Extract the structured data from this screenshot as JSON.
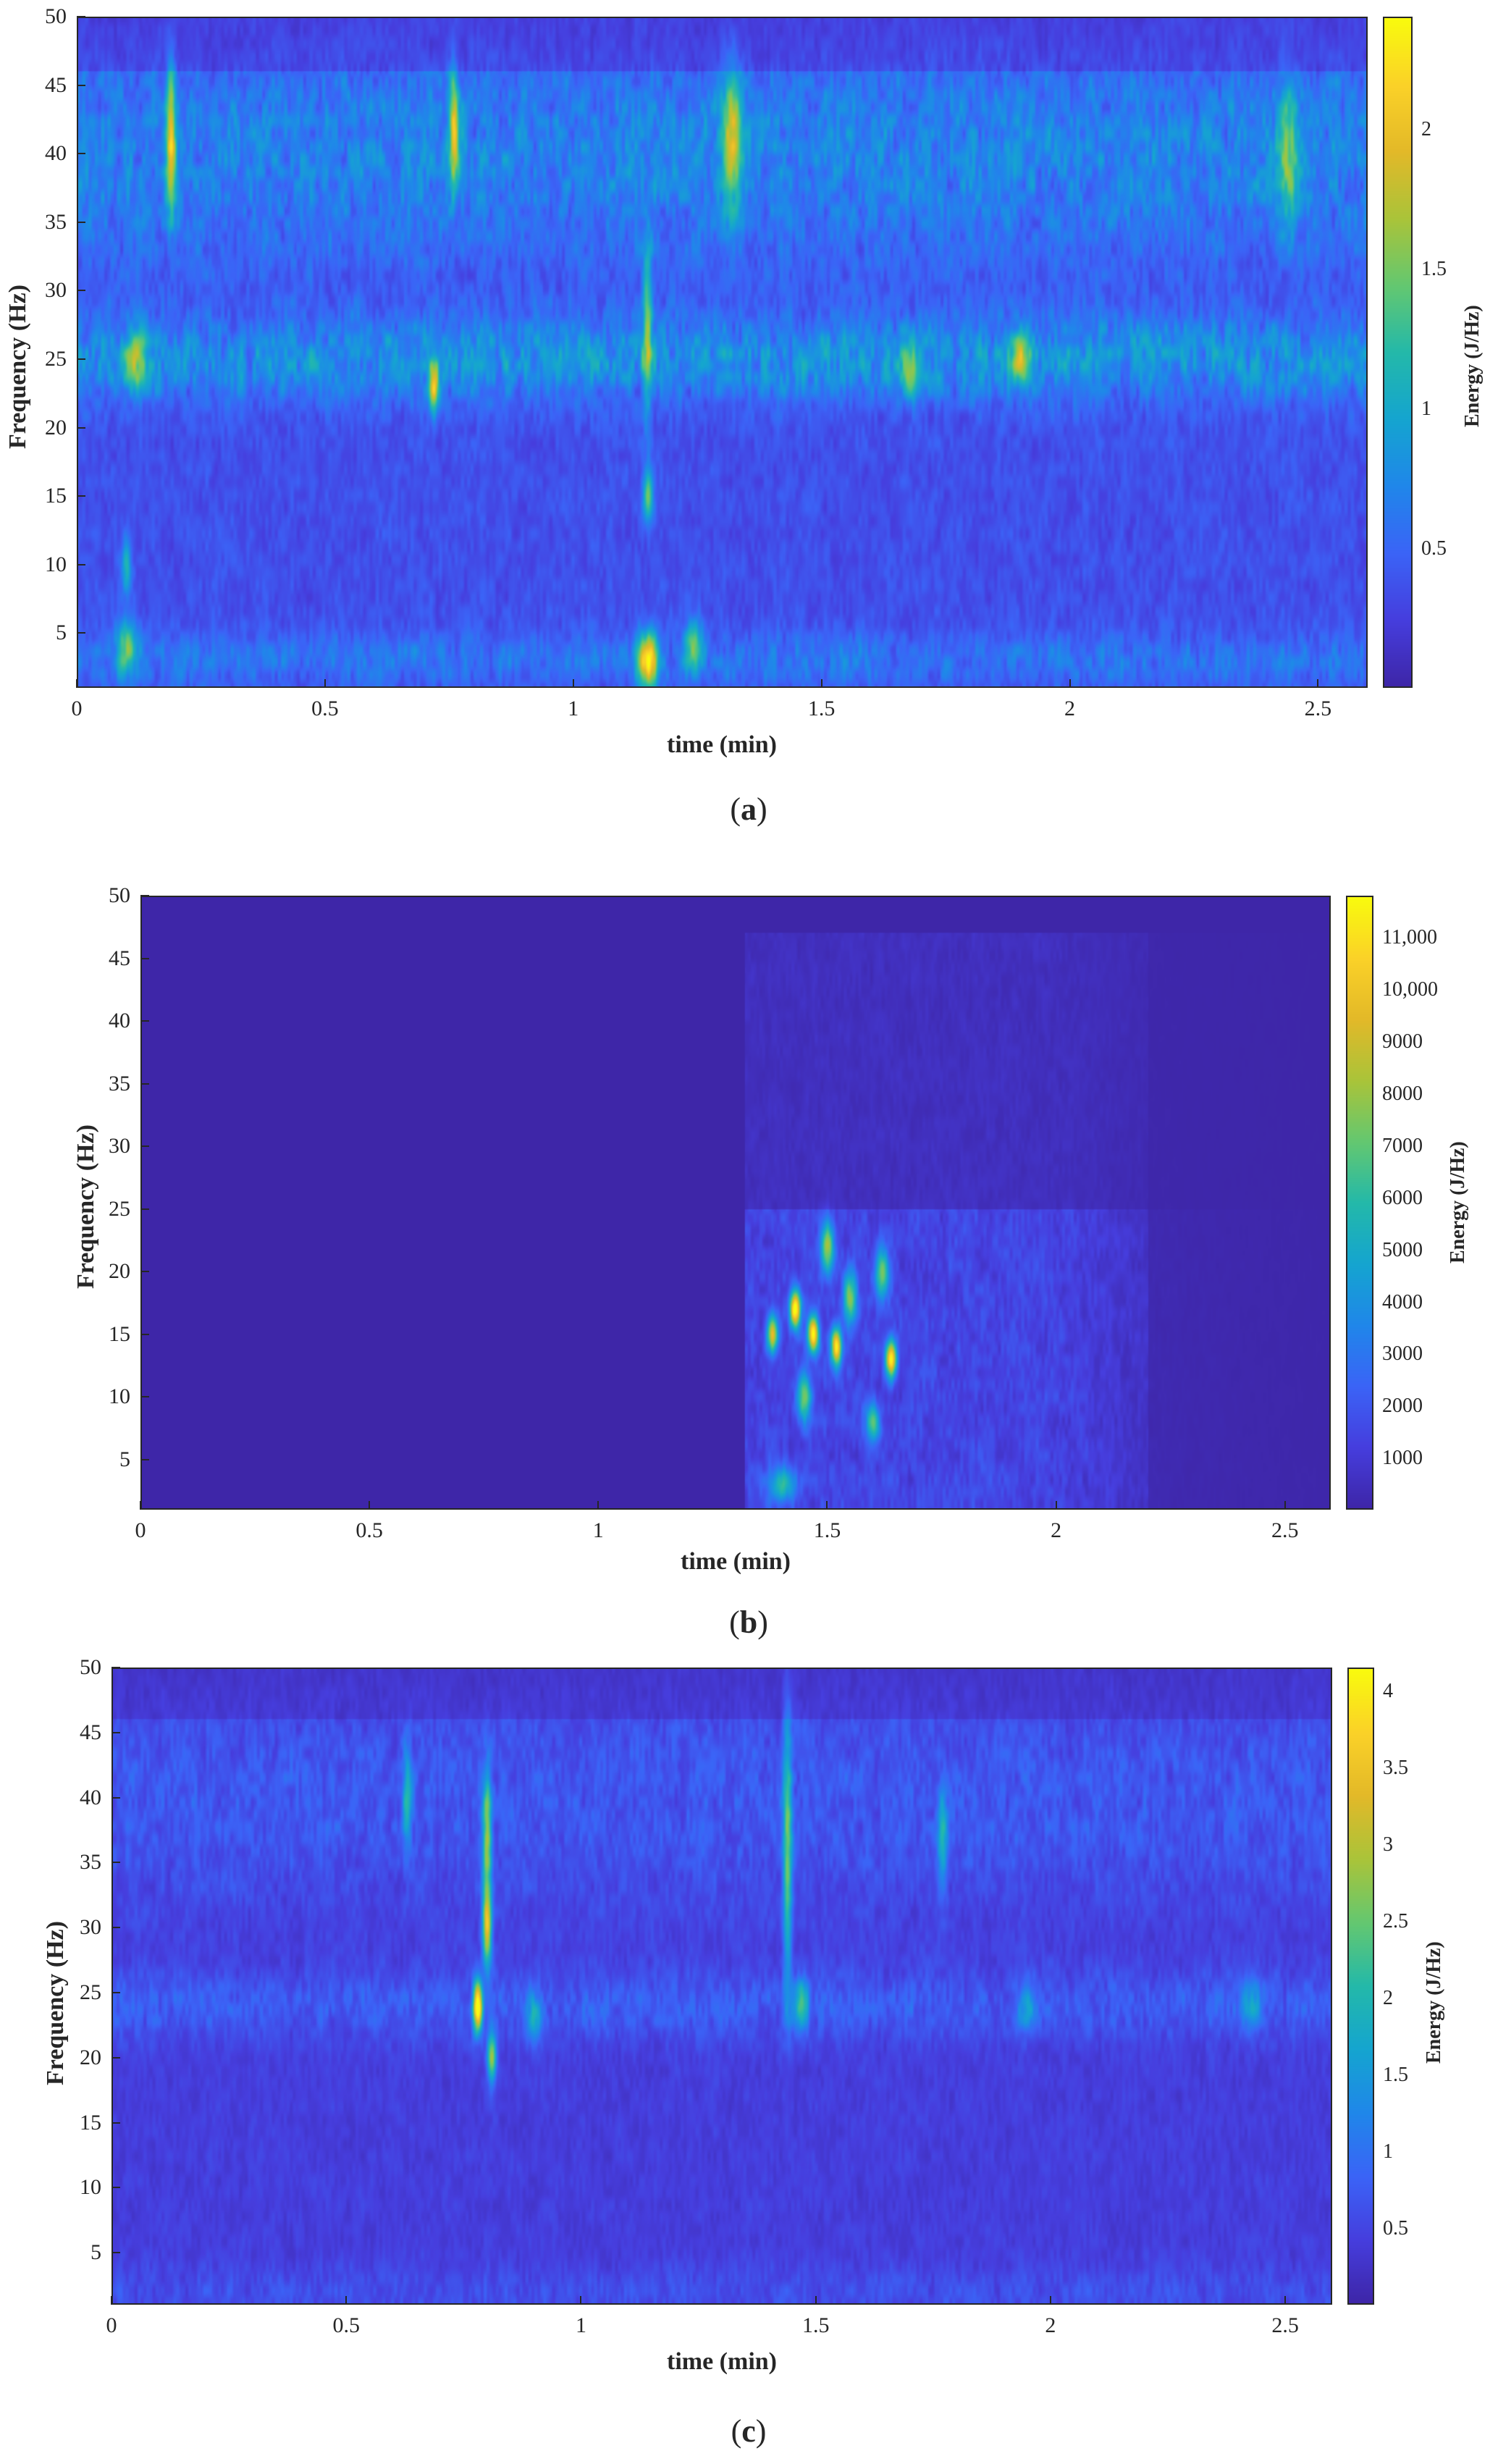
{
  "chart_data": [
    {
      "type": "heatmap",
      "caption": [
        "(",
        "a",
        ")"
      ],
      "xlabel": "time (min)",
      "ylabel": "Frequency (Hz)",
      "colorbar_label": "Energy (J/Hz)",
      "xlim": [
        0,
        2.6
      ],
      "ylim": [
        1,
        50
      ],
      "clim": [
        0,
        2.4
      ],
      "colormap": "parula",
      "xticks": [
        0,
        0.5,
        1,
        1.5,
        2,
        2.5
      ],
      "xtick_labels": [
        "0",
        "0.5",
        "1",
        "1.5",
        "2",
        "2.5"
      ],
      "yticks": [
        5,
        10,
        15,
        20,
        25,
        30,
        35,
        40,
        45,
        50
      ],
      "ytick_labels": [
        "5",
        "10",
        "15",
        "20",
        "25",
        "30",
        "35",
        "40",
        "45",
        "50"
      ],
      "cticks": [
        0.5,
        1,
        1.5,
        2
      ],
      "ctick_labels": [
        "0.5",
        "1",
        "1.5",
        "2"
      ],
      "background_energy": 0.35,
      "bands": [
        {
          "f": 25,
          "width": 3,
          "t0": 0,
          "t1": 2.6,
          "energy": 0.45
        },
        {
          "f": 40,
          "width": 8,
          "t0": 0,
          "t1": 2.6,
          "energy": 0.35
        },
        {
          "f": 3,
          "width": 2,
          "t0": 0,
          "t1": 2.6,
          "energy": 0.25
        }
      ],
      "hotspots": [
        {
          "t": 1.15,
          "f": 3,
          "energy": 1.9,
          "dt": 0.02,
          "df": 2
        },
        {
          "t": 1.15,
          "f": 15,
          "energy": 1.1,
          "dt": 0.01,
          "df": 2
        },
        {
          "t": 1.15,
          "f": 27,
          "energy": 1.0,
          "dt": 0.01,
          "df": 6
        },
        {
          "t": 0.1,
          "f": 4,
          "energy": 1.0,
          "dt": 0.02,
          "df": 2
        },
        {
          "t": 0.1,
          "f": 10,
          "energy": 0.8,
          "dt": 0.01,
          "df": 2
        },
        {
          "t": 1.24,
          "f": 4,
          "energy": 0.9,
          "dt": 0.02,
          "df": 2
        },
        {
          "t": 0.72,
          "f": 23,
          "energy": 1.5,
          "dt": 0.01,
          "df": 2
        },
        {
          "t": 0.76,
          "f": 42,
          "energy": 1.4,
          "dt": 0.01,
          "df": 4
        },
        {
          "t": 0.19,
          "f": 41,
          "energy": 1.5,
          "dt": 0.01,
          "df": 5
        },
        {
          "t": 0.12,
          "f": 25,
          "energy": 1.0,
          "dt": 0.02,
          "df": 2
        },
        {
          "t": 1.32,
          "f": 41,
          "energy": 1.2,
          "dt": 0.02,
          "df": 5
        },
        {
          "t": 1.68,
          "f": 24,
          "energy": 0.9,
          "dt": 0.02,
          "df": 2
        },
        {
          "t": 2.44,
          "f": 40,
          "energy": 0.9,
          "dt": 0.02,
          "df": 5
        },
        {
          "t": 1.9,
          "f": 25,
          "energy": 0.9,
          "dt": 0.02,
          "df": 2
        }
      ]
    },
    {
      "type": "heatmap",
      "caption": [
        "(",
        "b",
        ")"
      ],
      "xlabel": "time (min)",
      "ylabel": "Frequency (Hz)",
      "colorbar_label": "Energy (J/Hz)",
      "xlim": [
        0,
        2.6
      ],
      "ylim": [
        1,
        50
      ],
      "clim": [
        0,
        11800
      ],
      "colormap": "parula",
      "xticks": [
        0,
        0.5,
        1,
        1.5,
        2,
        2.5
      ],
      "xtick_labels": [
        "0",
        "0.5",
        "1",
        "1.5",
        "2",
        "2.5"
      ],
      "yticks": [
        5,
        10,
        15,
        20,
        25,
        30,
        35,
        40,
        45,
        50
      ],
      "ytick_labels": [
        "5",
        "10",
        "15",
        "20",
        "25",
        "30",
        "35",
        "40",
        "45",
        "50"
      ],
      "cticks": [
        1000,
        2000,
        3000,
        4000,
        5000,
        6000,
        7000,
        8000,
        9000,
        10000,
        11000
      ],
      "ctick_labels": [
        "1000",
        "2000",
        "3000",
        "4000",
        "5000",
        "6000",
        "7000",
        "8000",
        "9000",
        "10,000",
        "11,000"
      ],
      "background_energy": 0,
      "onset_time": 1.32,
      "region": {
        "t0": 1.32,
        "t1": 2.0,
        "f0": 1,
        "f1": 47,
        "energy": 1400
      },
      "hotspots": [
        {
          "t": 1.43,
          "f": 17,
          "energy": 11000,
          "dt": 0.012,
          "df": 1.5
        },
        {
          "t": 1.47,
          "f": 15,
          "energy": 10500,
          "dt": 0.012,
          "df": 1.5
        },
        {
          "t": 1.52,
          "f": 14,
          "energy": 9500,
          "dt": 0.012,
          "df": 1.5
        },
        {
          "t": 1.64,
          "f": 13,
          "energy": 10000,
          "dt": 0.012,
          "df": 1.5
        },
        {
          "t": 1.38,
          "f": 15,
          "energy": 8000,
          "dt": 0.012,
          "df": 1.5
        },
        {
          "t": 1.5,
          "f": 22,
          "energy": 7000,
          "dt": 0.015,
          "df": 2
        },
        {
          "t": 1.55,
          "f": 18,
          "energy": 6500,
          "dt": 0.015,
          "df": 2
        },
        {
          "t": 1.6,
          "f": 8,
          "energy": 5500,
          "dt": 0.015,
          "df": 1.5
        },
        {
          "t": 1.45,
          "f": 10,
          "energy": 6000,
          "dt": 0.015,
          "df": 2
        },
        {
          "t": 1.4,
          "f": 3,
          "energy": 4500,
          "dt": 0.03,
          "df": 1.5
        },
        {
          "t": 1.62,
          "f": 20,
          "energy": 6000,
          "dt": 0.015,
          "df": 2
        }
      ]
    },
    {
      "type": "heatmap",
      "caption": [
        "(",
        "c",
        ")"
      ],
      "xlabel": "time (min)",
      "ylabel": "Frequency (Hz)",
      "colorbar_label": "Energy (J/Hz)",
      "xlim": [
        0,
        2.6
      ],
      "ylim": [
        1,
        50
      ],
      "clim": [
        0,
        4.15
      ],
      "colormap": "parula",
      "xticks": [
        0,
        0.5,
        1,
        1.5,
        2,
        2.5
      ],
      "xtick_labels": [
        "0",
        "0.5",
        "1",
        "1.5",
        "2",
        "2.5"
      ],
      "yticks": [
        5,
        10,
        15,
        20,
        25,
        30,
        35,
        40,
        45,
        50
      ],
      "ytick_labels": [
        "5",
        "10",
        "15",
        "20",
        "25",
        "30",
        "35",
        "40",
        "45",
        "50"
      ],
      "cticks": [
        0.5,
        1,
        1.5,
        2,
        2.5,
        3,
        3.5,
        4
      ],
      "ctick_labels": [
        "0.5",
        "1",
        "1.5",
        "2",
        "2.5",
        "3",
        "3.5",
        "4"
      ],
      "background_energy": 0.4,
      "bands": [
        {
          "f": 24,
          "width": 2.5,
          "t0": 0,
          "t1": 2.6,
          "energy": 0.35
        },
        {
          "f": 40,
          "width": 8,
          "t0": 0,
          "t1": 2.6,
          "energy": 0.3
        },
        {
          "f": 2,
          "width": 2,
          "t0": 0,
          "t1": 2.6,
          "energy": 0.2
        }
      ],
      "hotspots": [
        {
          "t": 0.78,
          "f": 24,
          "energy": 3.8,
          "dt": 0.01,
          "df": 2
        },
        {
          "t": 0.8,
          "f": 30,
          "energy": 2.8,
          "dt": 0.01,
          "df": 3
        },
        {
          "t": 0.8,
          "f": 37,
          "energy": 2.2,
          "dt": 0.01,
          "df": 5
        },
        {
          "t": 0.81,
          "f": 20,
          "energy": 2.4,
          "dt": 0.01,
          "df": 2
        },
        {
          "t": 1.44,
          "f": 36,
          "energy": 2.0,
          "dt": 0.01,
          "df": 10
        },
        {
          "t": 1.47,
          "f": 24,
          "energy": 1.6,
          "dt": 0.015,
          "df": 2
        },
        {
          "t": 0.63,
          "f": 40,
          "energy": 1.3,
          "dt": 0.01,
          "df": 4
        },
        {
          "t": 1.77,
          "f": 37,
          "energy": 1.3,
          "dt": 0.01,
          "df": 4
        },
        {
          "t": 2.43,
          "f": 24,
          "energy": 1.0,
          "dt": 0.02,
          "df": 2
        },
        {
          "t": 1.95,
          "f": 24,
          "energy": 1.0,
          "dt": 0.02,
          "df": 2
        },
        {
          "t": 0.9,
          "f": 23,
          "energy": 1.2,
          "dt": 0.015,
          "df": 2
        }
      ]
    }
  ]
}
